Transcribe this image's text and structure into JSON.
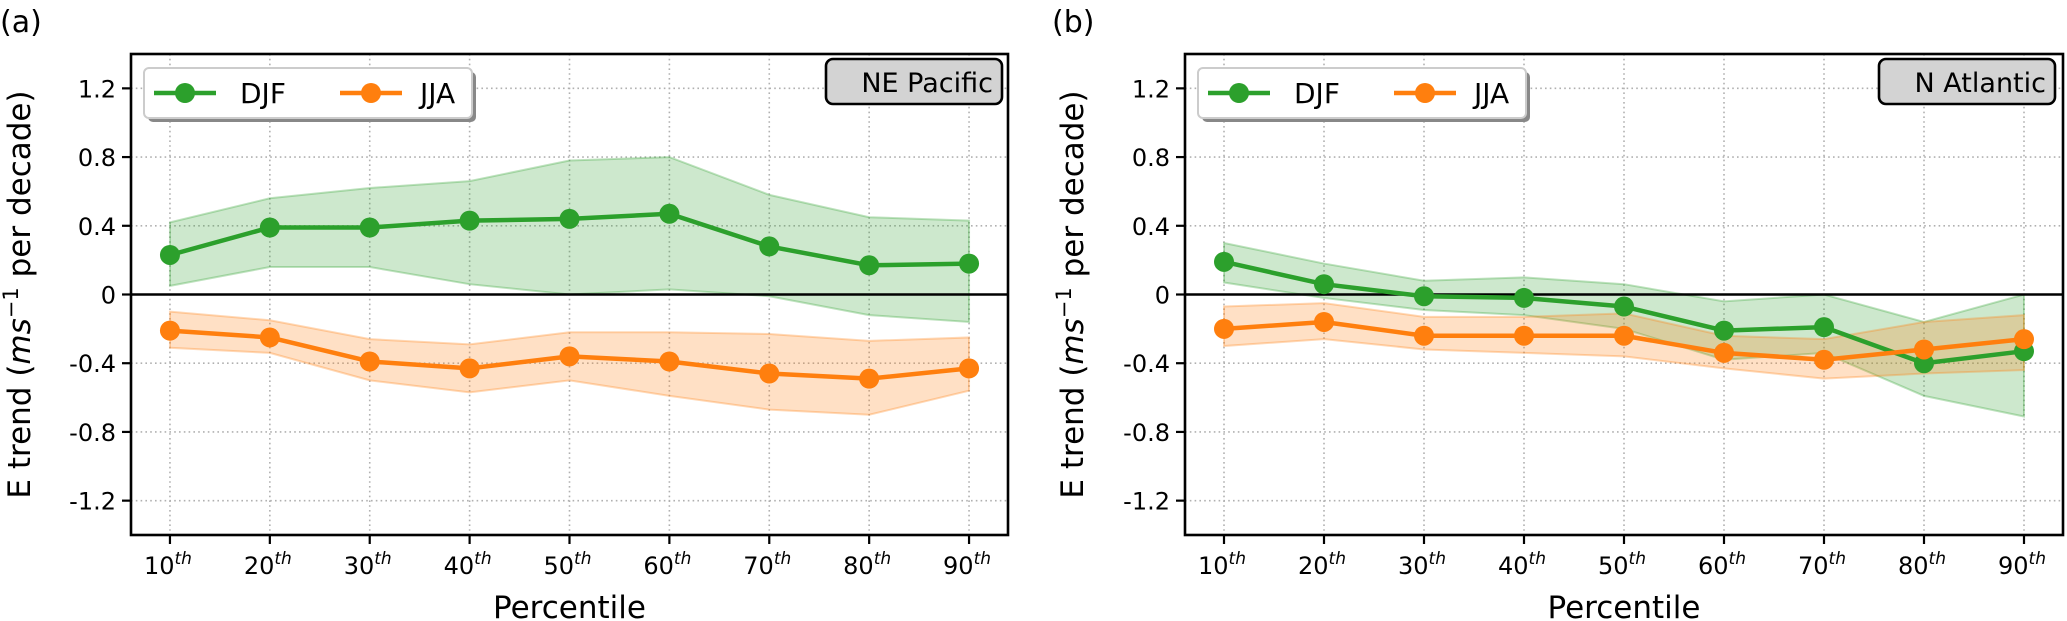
{
  "chart_data": [
    {
      "panel_label": "(a)",
      "type": "line",
      "region": "NE Pacific",
      "xlabel": "Percentile",
      "ylabel": "E trend (ms⁻¹ per decade)",
      "ylabel_parts": {
        "prefix": "E trend (",
        "unit_italic": "ms",
        "exponent": "−1",
        "suffix": " per decade)"
      },
      "x": [
        10,
        20,
        30,
        40,
        50,
        60,
        70,
        80,
        90
      ],
      "xtick_labels": [
        {
          "num": "10",
          "sup": "th"
        },
        {
          "num": "20",
          "sup": "th"
        },
        {
          "num": "30",
          "sup": "th"
        },
        {
          "num": "40",
          "sup": "th"
        },
        {
          "num": "50",
          "sup": "th"
        },
        {
          "num": "60",
          "sup": "th"
        },
        {
          "num": "70",
          "sup": "th"
        },
        {
          "num": "80",
          "sup": "th"
        },
        {
          "num": "90",
          "sup": "th"
        }
      ],
      "yticks": [
        1.2,
        0.8,
        0.4,
        0,
        -0.4,
        -0.8,
        -1.2
      ],
      "ytick_labels": [
        "1.2",
        "0.8",
        "0.4",
        "0",
        "-0.4",
        "-0.8",
        "-1.2"
      ],
      "xlim": [
        6.1,
        93.9
      ],
      "ylim": [
        -1.4,
        1.4
      ],
      "grid": true,
      "zero_line": true,
      "legend_position": "top-left",
      "series": [
        {
          "name": "DJF",
          "color": "#2ca02c",
          "values": [
            0.23,
            0.39,
            0.39,
            0.43,
            0.44,
            0.47,
            0.28,
            0.17,
            0.18
          ],
          "upper": [
            0.42,
            0.56,
            0.62,
            0.66,
            0.78,
            0.8,
            0.58,
            0.45,
            0.43
          ],
          "lower": [
            0.05,
            0.16,
            0.16,
            0.06,
            0.0,
            0.03,
            -0.01,
            -0.12,
            -0.16
          ]
        },
        {
          "name": "JJA",
          "color": "#ff7f0e",
          "values": [
            -0.21,
            -0.25,
            -0.39,
            -0.43,
            -0.36,
            -0.39,
            -0.46,
            -0.49,
            -0.43
          ],
          "upper": [
            -0.1,
            -0.15,
            -0.26,
            -0.29,
            -0.22,
            -0.22,
            -0.23,
            -0.27,
            -0.25
          ],
          "lower": [
            -0.31,
            -0.34,
            -0.5,
            -0.57,
            -0.5,
            -0.59,
            -0.67,
            -0.7,
            -0.56
          ]
        }
      ]
    },
    {
      "panel_label": "(b)",
      "type": "line",
      "region": "N Atlantic",
      "xlabel": "Percentile",
      "ylabel": "E trend (ms⁻¹ per decade)",
      "ylabel_parts": {
        "prefix": "E trend (",
        "unit_italic": "ms",
        "exponent": "−1",
        "suffix": " per decade)"
      },
      "x": [
        10,
        20,
        30,
        40,
        50,
        60,
        70,
        80,
        90
      ],
      "xtick_labels": [
        {
          "num": "10",
          "sup": "th"
        },
        {
          "num": "20",
          "sup": "th"
        },
        {
          "num": "30",
          "sup": "th"
        },
        {
          "num": "40",
          "sup": "th"
        },
        {
          "num": "50",
          "sup": "th"
        },
        {
          "num": "60",
          "sup": "th"
        },
        {
          "num": "70",
          "sup": "th"
        },
        {
          "num": "80",
          "sup": "th"
        },
        {
          "num": "90",
          "sup": "th"
        }
      ],
      "yticks": [
        1.2,
        0.8,
        0.4,
        0,
        -0.4,
        -0.8,
        -1.2
      ],
      "ytick_labels": [
        "1.2",
        "0.8",
        "0.4",
        "0",
        "-0.4",
        "-0.8",
        "-1.2"
      ],
      "xlim": [
        6.1,
        93.9
      ],
      "ylim": [
        -1.4,
        1.4
      ],
      "grid": true,
      "zero_line": true,
      "legend_position": "top-left",
      "series": [
        {
          "name": "DJF",
          "color": "#2ca02c",
          "values": [
            0.19,
            0.06,
            -0.01,
            -0.02,
            -0.07,
            -0.21,
            -0.19,
            -0.4,
            -0.33
          ],
          "upper": [
            0.3,
            0.18,
            0.08,
            0.1,
            0.06,
            -0.04,
            0.0,
            -0.16,
            0.0
          ],
          "lower": [
            0.07,
            -0.02,
            -0.09,
            -0.12,
            -0.2,
            -0.38,
            -0.34,
            -0.59,
            -0.71
          ]
        },
        {
          "name": "JJA",
          "color": "#ff7f0e",
          "values": [
            -0.2,
            -0.16,
            -0.24,
            -0.24,
            -0.24,
            -0.34,
            -0.38,
            -0.32,
            -0.26
          ],
          "upper": [
            -0.07,
            -0.05,
            -0.13,
            -0.13,
            -0.11,
            -0.24,
            -0.26,
            -0.16,
            -0.12
          ],
          "lower": [
            -0.3,
            -0.26,
            -0.32,
            -0.34,
            -0.36,
            -0.43,
            -0.49,
            -0.46,
            -0.44
          ]
        }
      ]
    }
  ]
}
